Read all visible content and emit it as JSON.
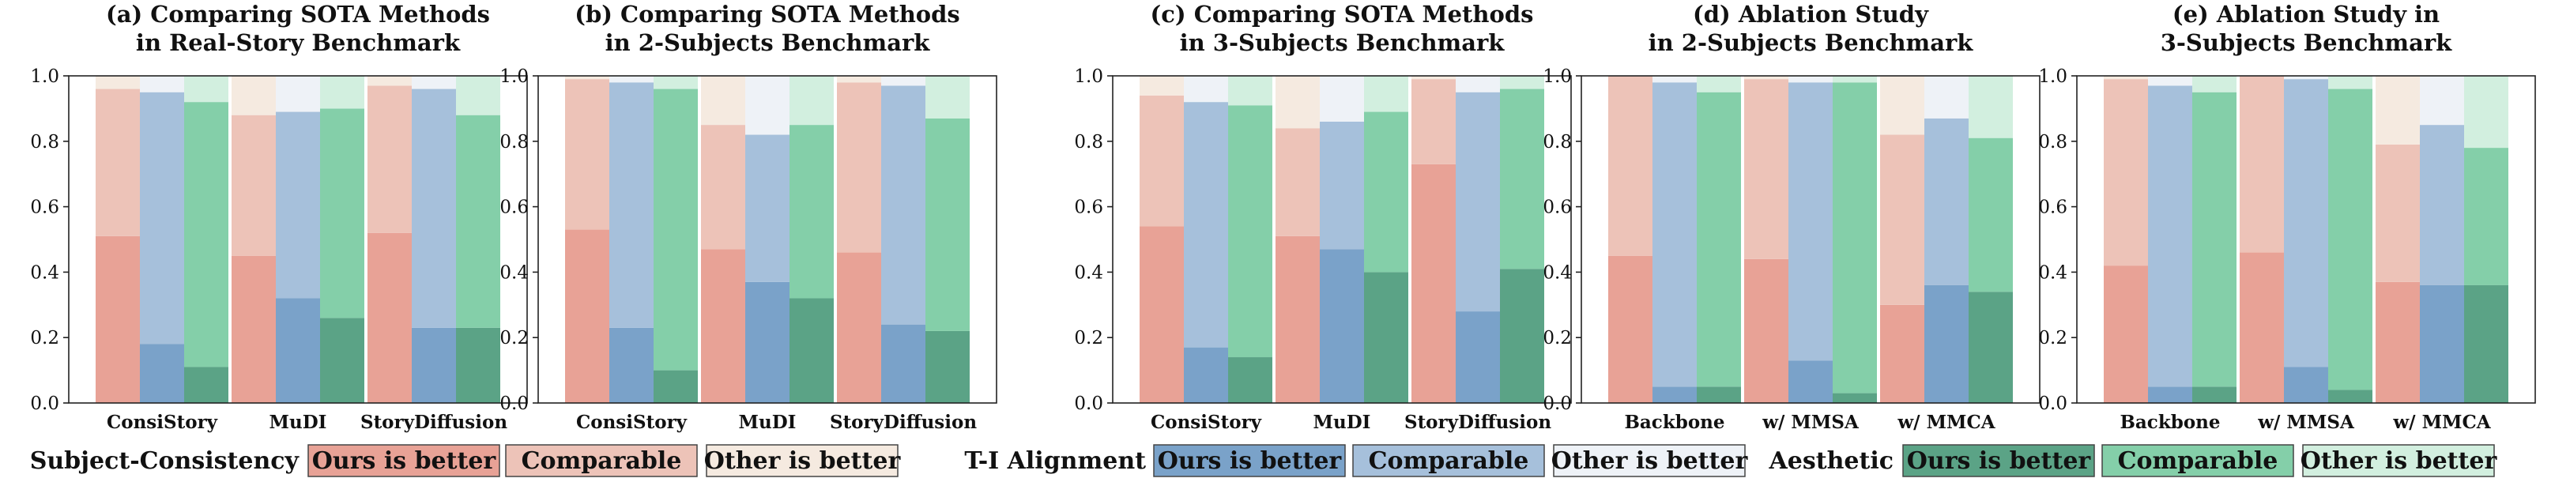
{
  "colors": {
    "subject": {
      "ours": "#E8A296",
      "comparable": "#EDC3B8",
      "other": "#F5EAE0"
    },
    "alignment": {
      "ours": "#7AA2C9",
      "comparable": "#A6C0DB",
      "other": "#EEF2F7"
    },
    "aesthetic": {
      "ours": "#5BA386",
      "comparable": "#84CFA9",
      "other": "#D2EFDF"
    }
  },
  "legend": [
    {
      "title": "Subject-Consistency",
      "group": "subject",
      "items": [
        "Ours is better",
        "Comparable",
        "Other is better"
      ]
    },
    {
      "title": "T-I Alignment",
      "group": "alignment",
      "items": [
        "Ours is better",
        "Comparable",
        "Other is better"
      ]
    },
    {
      "title": "Aesthetic",
      "group": "aesthetic",
      "items": [
        "Ours is better",
        "Comparable",
        "Other is better"
      ]
    }
  ],
  "chart_data": [
    {
      "type": "bar",
      "title_lines": [
        "(a) Comparing SOTA Methods",
        "in Real-Story Benchmark"
      ],
      "categories": [
        "ConsiStory",
        "MuDI",
        "StoryDiffusion"
      ],
      "yticks": [
        "0.0",
        "0.2",
        "0.4",
        "0.6",
        "0.8",
        "1.0"
      ],
      "ylim": [
        0,
        1.0
      ],
      "stack_levels": {
        "subject": {
          "ours": [
            0.51,
            0.45,
            0.52
          ],
          "ours_plus_comparable": [
            0.96,
            0.88,
            0.97
          ]
        },
        "alignment": {
          "ours": [
            0.18,
            0.32,
            0.23
          ],
          "ours_plus_comparable": [
            0.95,
            0.89,
            0.96
          ]
        },
        "aesthetic": {
          "ours": [
            0.11,
            0.26,
            0.23
          ],
          "ours_plus_comparable": [
            0.92,
            0.9,
            0.88
          ]
        }
      }
    },
    {
      "type": "bar",
      "title_lines": [
        "(b) Comparing SOTA Methods",
        "in 2-Subjects Benchmark"
      ],
      "categories": [
        "ConsiStory",
        "MuDI",
        "StoryDiffusion"
      ],
      "yticks": [
        "0.0",
        "0.2",
        "0.4",
        "0.6",
        "0.8",
        "1.0"
      ],
      "ylim": [
        0,
        1.0
      ],
      "stack_levels": {
        "subject": {
          "ours": [
            0.53,
            0.47,
            0.46
          ],
          "ours_plus_comparable": [
            0.99,
            0.85,
            0.98
          ]
        },
        "alignment": {
          "ours": [
            0.23,
            0.37,
            0.24
          ],
          "ours_plus_comparable": [
            0.98,
            0.82,
            0.97
          ]
        },
        "aesthetic": {
          "ours": [
            0.1,
            0.32,
            0.22
          ],
          "ours_plus_comparable": [
            0.96,
            0.85,
            0.87
          ]
        }
      }
    },
    {
      "type": "bar",
      "title_lines": [
        "(c) Comparing SOTA Methods",
        "in 3-Subjects Benchmark"
      ],
      "categories": [
        "ConsiStory",
        "MuDI",
        "StoryDiffusion"
      ],
      "yticks": [
        "0.0",
        "0.2",
        "0.4",
        "0.6",
        "0.8",
        "1.0"
      ],
      "ylim": [
        0,
        1.0
      ],
      "stack_levels": {
        "subject": {
          "ours": [
            0.54,
            0.51,
            0.73
          ],
          "ours_plus_comparable": [
            0.94,
            0.84,
            0.99
          ]
        },
        "alignment": {
          "ours": [
            0.17,
            0.47,
            0.28
          ],
          "ours_plus_comparable": [
            0.92,
            0.86,
            0.95
          ]
        },
        "aesthetic": {
          "ours": [
            0.14,
            0.4,
            0.41
          ],
          "ours_plus_comparable": [
            0.91,
            0.89,
            0.96
          ]
        }
      }
    },
    {
      "type": "bar",
      "title_lines": [
        "(d) Ablation Study",
        "in 2-Subjects Benchmark"
      ],
      "categories": [
        "Backbone",
        "w/ MMSA",
        "w/ MMCA"
      ],
      "yticks": [
        "0.0",
        "0.2",
        "0.4",
        "0.6",
        "0.8",
        "1.0"
      ],
      "ylim": [
        0,
        1.0
      ],
      "stack_levels": {
        "subject": {
          "ours": [
            0.45,
            0.44,
            0.3
          ],
          "ours_plus_comparable": [
            1.0,
            0.99,
            0.82
          ]
        },
        "alignment": {
          "ours": [
            0.05,
            0.13,
            0.36
          ],
          "ours_plus_comparable": [
            0.98,
            0.98,
            0.87
          ]
        },
        "aesthetic": {
          "ours": [
            0.05,
            0.03,
            0.34
          ],
          "ours_plus_comparable": [
            0.95,
            0.98,
            0.81
          ]
        }
      }
    },
    {
      "type": "bar",
      "title_lines": [
        "(e) Ablation Study in",
        "3-Subjects Benchmark"
      ],
      "categories": [
        "Backbone",
        "w/ MMSA",
        "w/ MMCA"
      ],
      "yticks": [
        "0.0",
        "0.2",
        "0.4",
        "0.6",
        "0.8",
        "1.0"
      ],
      "ylim": [
        0,
        1.0
      ],
      "stack_levels": {
        "subject": {
          "ours": [
            0.42,
            0.46,
            0.37
          ],
          "ours_plus_comparable": [
            0.99,
            1.0,
            0.79
          ]
        },
        "alignment": {
          "ours": [
            0.05,
            0.11,
            0.36
          ],
          "ours_plus_comparable": [
            0.97,
            0.99,
            0.85
          ]
        },
        "aesthetic": {
          "ours": [
            0.05,
            0.04,
            0.36
          ],
          "ours_plus_comparable": [
            0.95,
            0.96,
            0.78
          ]
        }
      }
    }
  ]
}
